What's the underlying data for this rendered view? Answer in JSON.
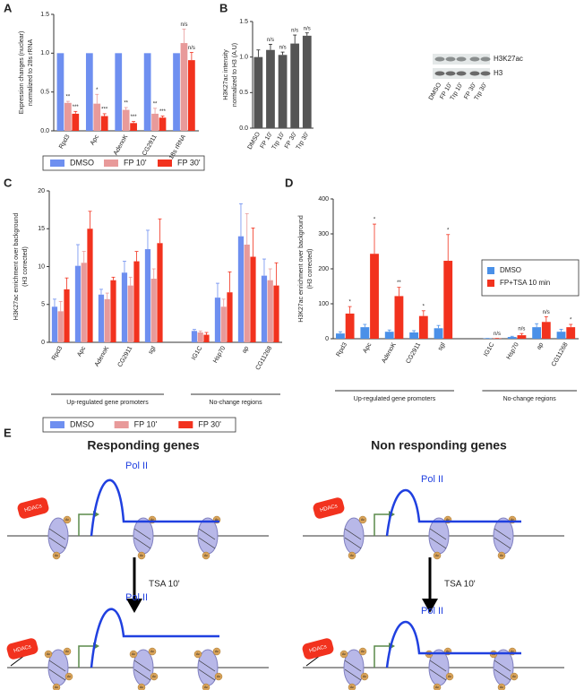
{
  "chart_data": [
    {
      "type": "bar",
      "panel": "A",
      "ylabel": [
        "Expression changes (nuclear)",
        "normalized to 28s rRNA"
      ],
      "categories": [
        "Rpd3",
        "Apc",
        "AdenoK",
        "CG2911",
        "18s rRNA"
      ],
      "series": [
        {
          "name": "DMSO",
          "color": "#6e8ff0",
          "values": [
            1,
            1,
            1,
            1,
            1
          ]
        },
        {
          "name": "FP 10'",
          "color": "#e89a9a",
          "values": [
            0.36,
            0.35,
            0.27,
            0.22,
            1.13
          ],
          "errors": [
            0.02,
            0.12,
            0.03,
            0.07,
            0.18
          ],
          "annotations": [
            "**",
            "*",
            "**",
            "**",
            "n/s"
          ]
        },
        {
          "name": "FP 30'",
          "color": "#f2321e",
          "values": [
            0.22,
            0.19,
            0.1,
            0.17,
            0.91
          ],
          "errors": [
            0.03,
            0.03,
            0.02,
            0.02,
            0.1
          ],
          "annotations": [
            "***",
            "***",
            "***",
            "***",
            "n/s"
          ]
        }
      ],
      "ylim": [
        0,
        1.5
      ],
      "yticks": [
        {
          "value": 0,
          "label": "0.0"
        },
        0.5,
        {
          "value": 1,
          "label": "1.0"
        },
        1.5
      ],
      "legend": "bottom"
    },
    {
      "type": "bar",
      "panel": "B",
      "ylabel": [
        "H3K27ac intensity",
        "normalized to H3 (A.U)"
      ],
      "categories": [
        "DMSO",
        "FP 10'",
        "Trp 10'",
        "FP 30'",
        "Trp 30'"
      ],
      "values": [
        1.0,
        1.1,
        1.03,
        1.19,
        1.3
      ],
      "errors": [
        0.1,
        0.08,
        0.04,
        0.12,
        0.04
      ],
      "annotations": [
        null,
        "n/s",
        "n/s",
        "n/s",
        "n/s"
      ],
      "color": "#555555",
      "ylim": [
        0,
        1.5
      ],
      "yticks": [
        {
          "value": 0,
          "label": "0.0"
        },
        0.5,
        {
          "value": 1,
          "label": "1.0"
        },
        1.5
      ],
      "blot_labels": [
        "H3K27ac",
        "H3"
      ]
    },
    {
      "type": "bar",
      "panel": "C",
      "ylabel": [
        "H3K27ac enrichment over background",
        "(H3 corrected)"
      ],
      "groups": [
        {
          "label": "Up-regulated gene promoters",
          "categories": [
            "Rpd3",
            "Apc",
            "AdenoK",
            "CG2911",
            "sgl"
          ]
        },
        {
          "label": "No-change regions",
          "categories": [
            "IG1C",
            "Hsp70",
            "ap",
            "CG11268"
          ]
        }
      ],
      "series": [
        {
          "name": "DMSO",
          "color": "#6e8ff0",
          "values": [
            4.7,
            10.1,
            6.3,
            9.2,
            12.3,
            1.5,
            5.9,
            14.0,
            8.8
          ],
          "errors": [
            1.0,
            2.8,
            0.7,
            1.5,
            2.5,
            0.2,
            1.9,
            4.3,
            2.2
          ]
        },
        {
          "name": "FP 10'",
          "color": "#e89a9a",
          "values": [
            4.1,
            10.5,
            5.7,
            7.5,
            8.4,
            1.3,
            4.7,
            12.9,
            8.2
          ],
          "errors": [
            1.3,
            1.5,
            0.8,
            1.1,
            1.3,
            0.2,
            1.0,
            4.1,
            1.5
          ]
        },
        {
          "name": "FP 30'",
          "color": "#f2321e",
          "values": [
            7.0,
            15.0,
            8.2,
            10.7,
            13.1,
            1.0,
            6.6,
            11.3,
            7.5
          ],
          "errors": [
            1.5,
            2.3,
            0.4,
            1.3,
            3.2,
            0.3,
            2.7,
            3.8,
            3.0
          ]
        }
      ],
      "ylim": [
        0,
        20
      ],
      "yticks": [
        0,
        5,
        10,
        15,
        20
      ],
      "legend": "bottom"
    },
    {
      "type": "bar",
      "panel": "D",
      "ylabel": [
        "H3K27ac enrichment over background",
        "(H3 corrected)"
      ],
      "groups": [
        {
          "label": "Up-regulated gene promoters",
          "categories": [
            "Rpd3",
            "Apc",
            "AdenoK",
            "CG2911",
            "sgl"
          ]
        },
        {
          "label": "No-change regions",
          "categories": [
            "IG1C",
            "Hsp70",
            "ap",
            "CG11268"
          ]
        }
      ],
      "series": [
        {
          "name": "DMSO",
          "color": "#4a90e8",
          "values": [
            15,
            33,
            20,
            18,
            30,
            1,
            5,
            33,
            20
          ],
          "errors": [
            5,
            8,
            5,
            5,
            8,
            0,
            2,
            10,
            7
          ]
        },
        {
          "name": "FP+TSA 10 min",
          "color": "#f2321e",
          "values": [
            72,
            243,
            122,
            65,
            223,
            1,
            10,
            48,
            33
          ],
          "errors": [
            20,
            85,
            25,
            15,
            75,
            0,
            5,
            15,
            8
          ],
          "annotations": [
            "*",
            "*",
            "**",
            "*",
            "*",
            "n/s",
            "n/s",
            "n/s",
            "*"
          ]
        }
      ],
      "ylim": [
        0,
        400
      ],
      "yticks": [
        0,
        100,
        200,
        300,
        400
      ],
      "legend": "upper right"
    }
  ],
  "diagram": {
    "panel": "E",
    "headings": [
      "Responding genes",
      "Non responding genes"
    ],
    "pol": "Pol II",
    "hdac": "HDACs",
    "treatment": "TSA 10'",
    "ac": "Ac"
  }
}
